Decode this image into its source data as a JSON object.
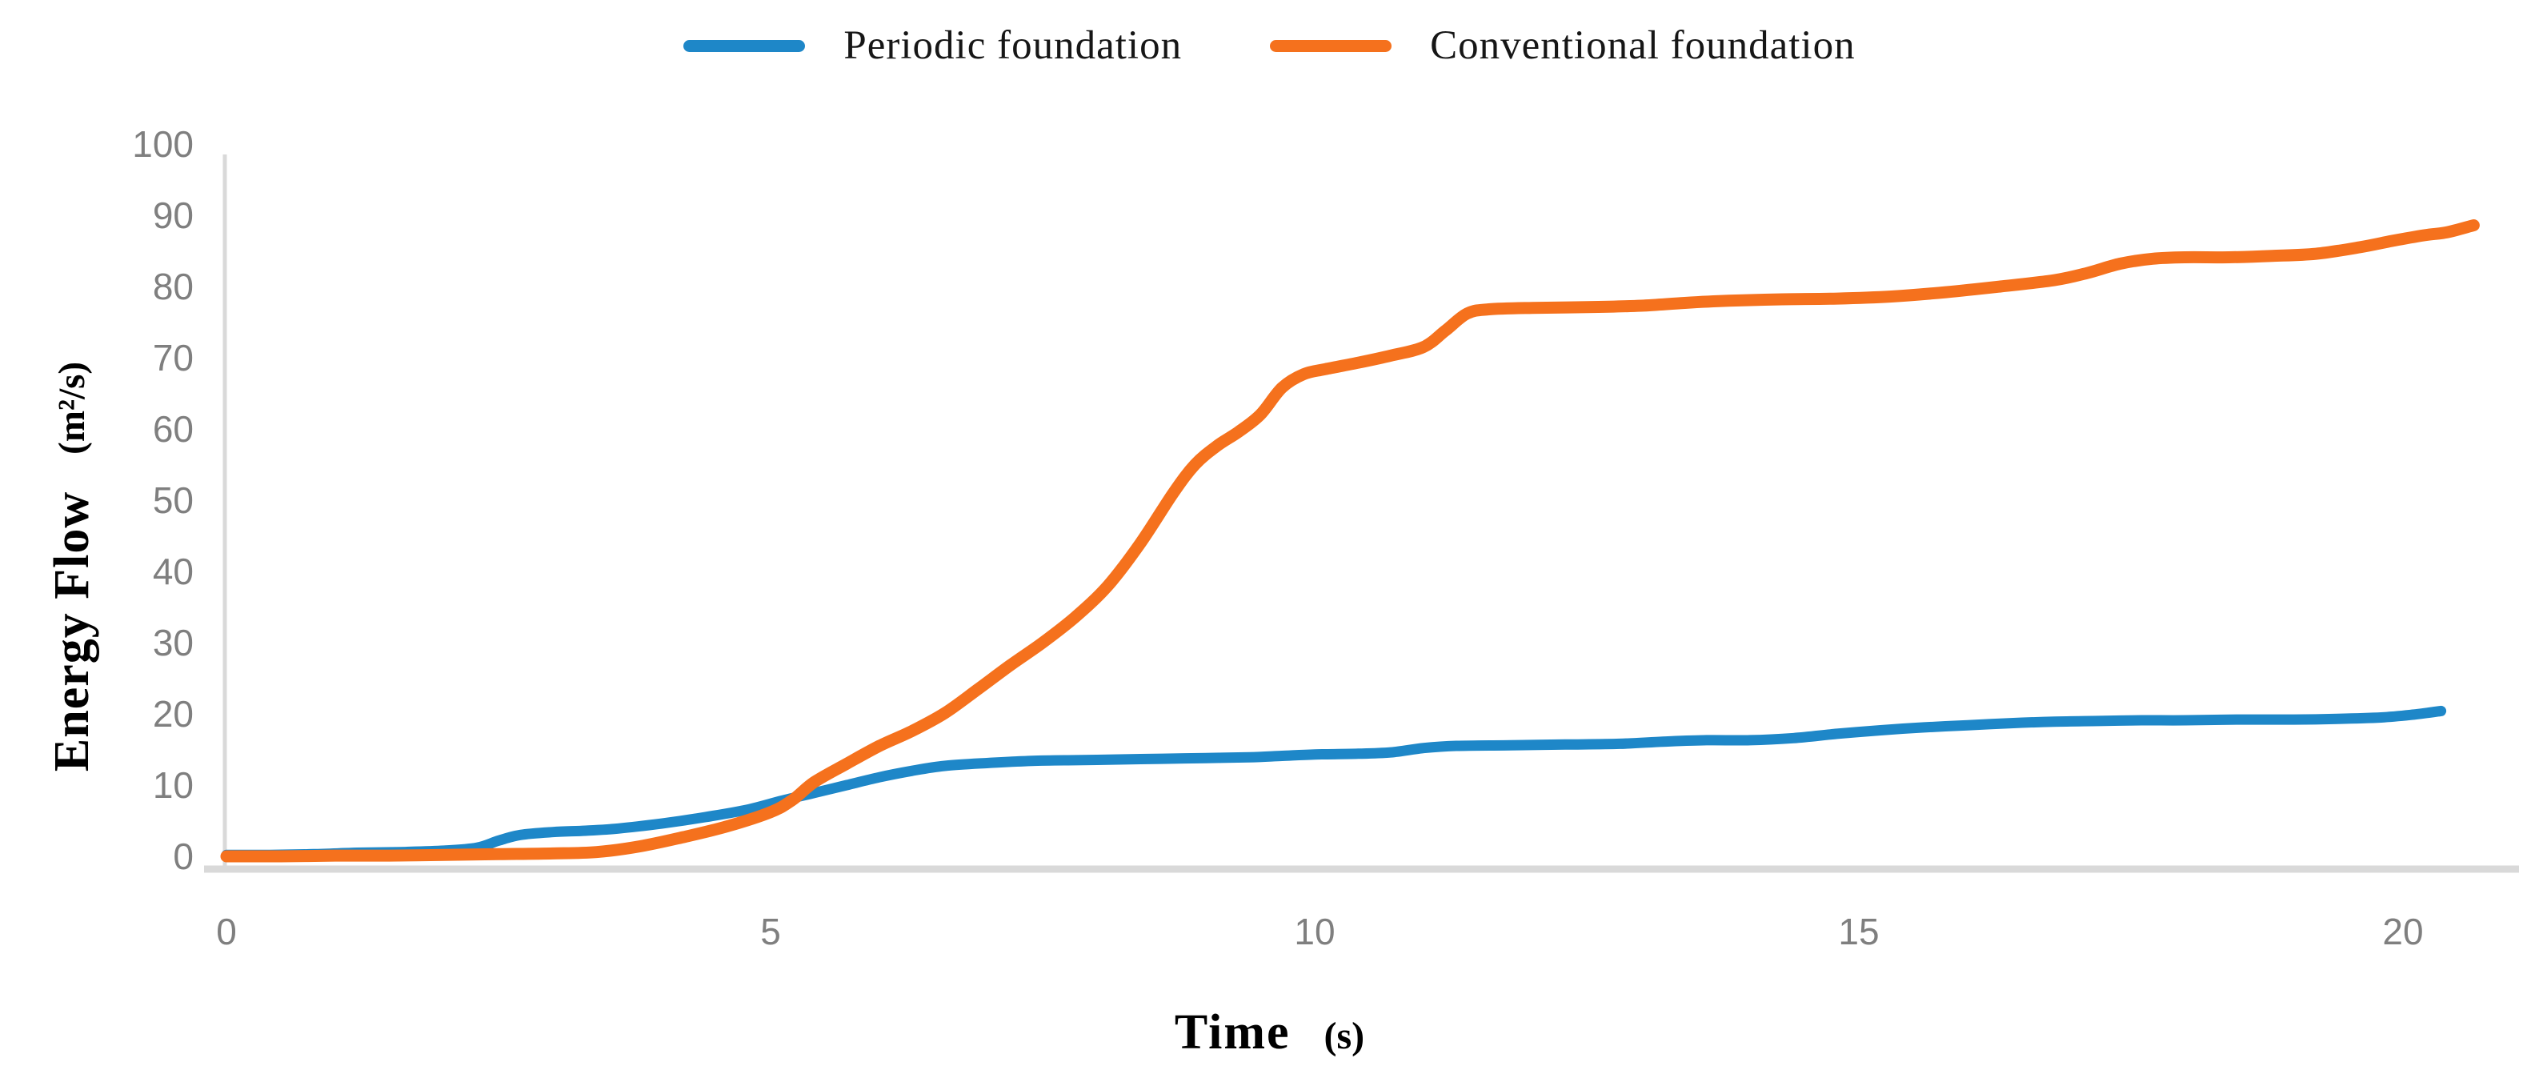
{
  "figure": {
    "background": "#ffffff"
  },
  "legend": {
    "items": [
      {
        "label": "Periodic foundation",
        "color": "#1E87C8"
      },
      {
        "label": "Conventional foundation",
        "color": "#F5711D"
      }
    ]
  },
  "axes": {
    "x": {
      "title": "Time",
      "unit": "(s)",
      "ticks": [
        0,
        5,
        10,
        15,
        20
      ],
      "range": [
        0,
        20
      ]
    },
    "y": {
      "title": "Energy Flow",
      "unit": "(m²/s)",
      "ticks": [
        0,
        10,
        20,
        30,
        40,
        50,
        60,
        70,
        80,
        90,
        100
      ],
      "range": [
        0,
        100
      ]
    }
  },
  "style": {
    "tick_color": "#7f7f7f",
    "axis_line_color": "#D9D9D9",
    "text_color": "#161616"
  },
  "chart_data": {
    "type": "line",
    "title": "",
    "xlabel": "Time (s)",
    "ylabel": "Energy Flow (m²/s)",
    "xlim": [
      0,
      21
    ],
    "ylim": [
      0,
      100
    ],
    "grid": false,
    "legend_position": "top-center",
    "series": [
      {
        "name": "Periodic foundation",
        "color": "#1E87C8",
        "stroke_width": 13,
        "points": [
          [
            0,
            0.2
          ],
          [
            0.4,
            0.2
          ],
          [
            0.8,
            0.3
          ],
          [
            1.2,
            0.5
          ],
          [
            1.6,
            0.6
          ],
          [
            2.0,
            0.8
          ],
          [
            2.3,
            1.2
          ],
          [
            2.5,
            2.2
          ],
          [
            2.7,
            3.0
          ],
          [
            3.0,
            3.4
          ],
          [
            3.3,
            3.6
          ],
          [
            3.6,
            3.9
          ],
          [
            4.0,
            4.6
          ],
          [
            4.4,
            5.5
          ],
          [
            4.8,
            6.6
          ],
          [
            5.1,
            7.8
          ],
          [
            5.4,
            8.9
          ],
          [
            5.7,
            10.0
          ],
          [
            6.0,
            11.1
          ],
          [
            6.3,
            12.0
          ],
          [
            6.6,
            12.7
          ],
          [
            7.0,
            13.1
          ],
          [
            7.4,
            13.4
          ],
          [
            7.8,
            13.5
          ],
          [
            8.2,
            13.6
          ],
          [
            8.6,
            13.7
          ],
          [
            9.0,
            13.8
          ],
          [
            9.4,
            13.9
          ],
          [
            9.7,
            14.1
          ],
          [
            10.0,
            14.3
          ],
          [
            10.4,
            14.4
          ],
          [
            10.7,
            14.6
          ],
          [
            11.0,
            15.2
          ],
          [
            11.3,
            15.5
          ],
          [
            11.8,
            15.6
          ],
          [
            12.3,
            15.7
          ],
          [
            12.8,
            15.8
          ],
          [
            13.2,
            16.1
          ],
          [
            13.6,
            16.3
          ],
          [
            14.0,
            16.3
          ],
          [
            14.4,
            16.6
          ],
          [
            14.8,
            17.2
          ],
          [
            15.2,
            17.7
          ],
          [
            15.6,
            18.1
          ],
          [
            16.0,
            18.4
          ],
          [
            16.4,
            18.7
          ],
          [
            16.8,
            18.9
          ],
          [
            17.2,
            19.0
          ],
          [
            17.6,
            19.1
          ],
          [
            18.0,
            19.1
          ],
          [
            18.5,
            19.2
          ],
          [
            19.0,
            19.2
          ],
          [
            19.4,
            19.3
          ],
          [
            19.8,
            19.5
          ],
          [
            20.1,
            19.9
          ],
          [
            20.35,
            20.4
          ]
        ]
      },
      {
        "name": "Conventional foundation",
        "color": "#F5711D",
        "stroke_width": 15,
        "points": [
          [
            0,
            0
          ],
          [
            0.5,
            0
          ],
          [
            1.0,
            0.1
          ],
          [
            1.5,
            0.1
          ],
          [
            2.0,
            0.2
          ],
          [
            2.5,
            0.3
          ],
          [
            3.0,
            0.4
          ],
          [
            3.4,
            0.6
          ],
          [
            3.8,
            1.4
          ],
          [
            4.2,
            2.7
          ],
          [
            4.6,
            4.2
          ],
          [
            5.0,
            6.2
          ],
          [
            5.2,
            7.9
          ],
          [
            5.4,
            10.4
          ],
          [
            5.7,
            13.0
          ],
          [
            6.0,
            15.5
          ],
          [
            6.3,
            17.6
          ],
          [
            6.6,
            20.1
          ],
          [
            6.9,
            23.4
          ],
          [
            7.2,
            26.8
          ],
          [
            7.5,
            30.0
          ],
          [
            7.8,
            33.6
          ],
          [
            8.1,
            38.0
          ],
          [
            8.4,
            44.0
          ],
          [
            8.7,
            51.0
          ],
          [
            8.9,
            55.0
          ],
          [
            9.1,
            57.6
          ],
          [
            9.3,
            59.6
          ],
          [
            9.5,
            62.0
          ],
          [
            9.7,
            65.8
          ],
          [
            9.9,
            67.7
          ],
          [
            10.1,
            68.4
          ],
          [
            10.4,
            69.3
          ],
          [
            10.7,
            70.3
          ],
          [
            11.0,
            71.5
          ],
          [
            11.2,
            73.8
          ],
          [
            11.4,
            76.2
          ],
          [
            11.6,
            76.8
          ],
          [
            12.0,
            77.0
          ],
          [
            12.5,
            77.1
          ],
          [
            13.0,
            77.3
          ],
          [
            13.4,
            77.7
          ],
          [
            13.8,
            78.0
          ],
          [
            14.3,
            78.2
          ],
          [
            14.8,
            78.3
          ],
          [
            15.3,
            78.6
          ],
          [
            15.8,
            79.2
          ],
          [
            16.3,
            80.0
          ],
          [
            16.8,
            80.9
          ],
          [
            17.1,
            81.9
          ],
          [
            17.4,
            83.2
          ],
          [
            17.7,
            83.9
          ],
          [
            18.0,
            84.1
          ],
          [
            18.4,
            84.1
          ],
          [
            18.8,
            84.3
          ],
          [
            19.2,
            84.6
          ],
          [
            19.6,
            85.5
          ],
          [
            19.9,
            86.4
          ],
          [
            20.2,
            87.2
          ],
          [
            20.4,
            87.6
          ],
          [
            20.65,
            88.6
          ]
        ]
      }
    ]
  }
}
